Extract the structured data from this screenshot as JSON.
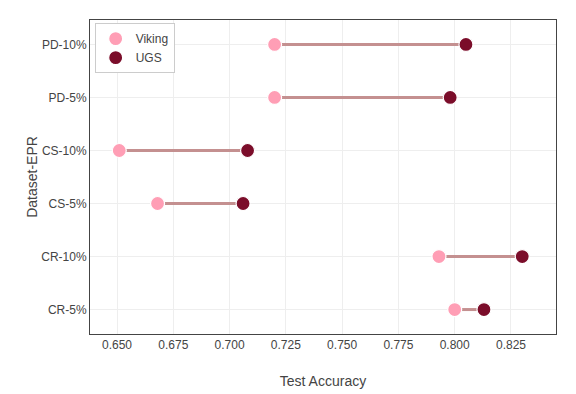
{
  "chart_data": {
    "type": "dumbbell",
    "categories": [
      "PD-10%",
      "PD-5%",
      "CS-10%",
      "CS-5%",
      "CR-10%",
      "CR-5%"
    ],
    "series": [
      {
        "name": "Viking",
        "color": "#FF9EB5",
        "marker": "circle",
        "values": [
          0.72,
          0.72,
          0.651,
          0.668,
          0.793,
          0.8
        ]
      },
      {
        "name": "UGS",
        "color": "#7B0D2A",
        "marker": "circle",
        "values": [
          0.805,
          0.798,
          0.708,
          0.706,
          0.83,
          0.813
        ]
      }
    ],
    "color": "#C49090",
    "xlabel": "Test Accuracy",
    "ylabel": "Dataset-EPR",
    "xlim": [
      0.638,
      0.845
    ],
    "xticks": [
      {
        "value": 0.65,
        "label": "0.650"
      },
      0.675,
      {
        "value": 0.7,
        "label": "0.700"
      },
      0.725,
      {
        "value": 0.75,
        "label": "0.750"
      },
      0.775,
      {
        "value": 0.8,
        "label": "0.800"
      },
      0.825
    ],
    "grid": true,
    "legend": "upper left"
  }
}
